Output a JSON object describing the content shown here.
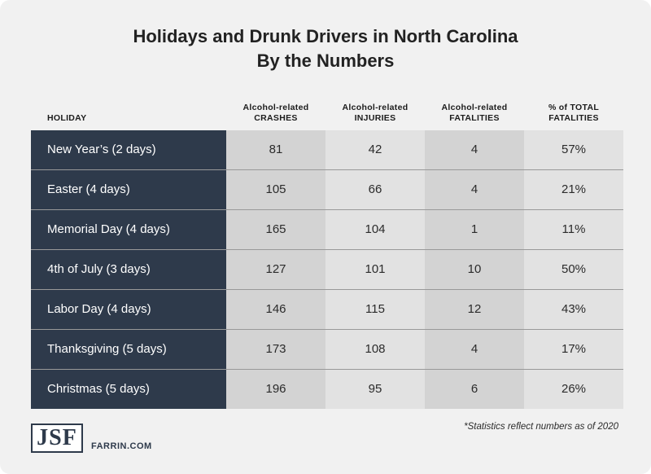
{
  "title": {
    "line1": "Holidays and Drunk Drivers in North Carolina",
    "line2": "By the Numbers"
  },
  "colors": {
    "row_header_bg": "#2e3a4b",
    "cell_dark": "#d3d3d3",
    "cell_light": "#e2e2e2",
    "background": "#f1f1f1"
  },
  "chart_data": {
    "type": "table",
    "columns": [
      {
        "lines": [
          "HOLIDAY"
        ]
      },
      {
        "lines": [
          "Alcohol-related",
          "CRASHES"
        ]
      },
      {
        "lines": [
          "Alcohol-related",
          "INJURIES"
        ]
      },
      {
        "lines": [
          "Alcohol-related",
          "FATALITIES"
        ]
      },
      {
        "lines": [
          "% of TOTAL",
          "FATALITIES"
        ]
      }
    ],
    "rows": [
      {
        "holiday": "New Year’s (2 days)",
        "crashes": "81",
        "injuries": "42",
        "fatalities": "4",
        "pct": "57%"
      },
      {
        "holiday": "Easter (4 days)",
        "crashes": "105",
        "injuries": "66",
        "fatalities": "4",
        "pct": "21%"
      },
      {
        "holiday": "Memorial Day (4 days)",
        "crashes": "165",
        "injuries": "104",
        "fatalities": "1",
        "pct": "11%"
      },
      {
        "holiday": "4th of July (3 days)",
        "crashes": "127",
        "injuries": "101",
        "fatalities": "10",
        "pct": "50%"
      },
      {
        "holiday": "Labor Day (4 days)",
        "crashes": "146",
        "injuries": "115",
        "fatalities": "12",
        "pct": "43%"
      },
      {
        "holiday": "Thanksgiving (5 days)",
        "crashes": "173",
        "injuries": "108",
        "fatalities": "4",
        "pct": "17%"
      },
      {
        "holiday": "Christmas (5 days)",
        "crashes": "196",
        "injuries": "95",
        "fatalities": "6",
        "pct": "26%"
      }
    ]
  },
  "footer": {
    "note": "*Statistics reflect numbers as of 2020",
    "logo_text": "JSF",
    "site": "FARRIN.COM"
  }
}
